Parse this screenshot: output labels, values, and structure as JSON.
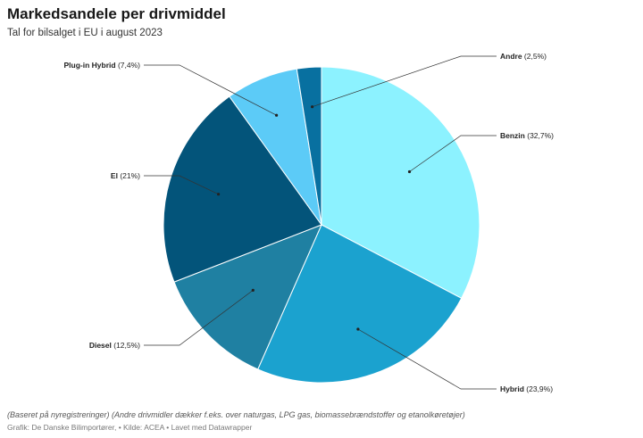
{
  "header": {
    "title": "Markedsandele per drivmiddel",
    "subtitle": "Tal for bilsalget i EU i august 2023"
  },
  "chart_data": {
    "type": "pie",
    "title": "Markedsandele per drivmiddel",
    "subtitle": "Tal for bilsalget i EU i august 2023",
    "slices": [
      {
        "name": "Benzin",
        "value": 32.7,
        "label": "(32,7%)",
        "color": "#8CF2FF"
      },
      {
        "name": "Hybrid",
        "value": 23.9,
        "label": "(23,9%)",
        "color": "#1BA2CF"
      },
      {
        "name": "Diesel",
        "value": 12.5,
        "label": "(12,5%)",
        "color": "#1F80A2"
      },
      {
        "name": "El",
        "value": 21,
        "label": "(21%)",
        "color": "#03547A"
      },
      {
        "name": "Plug-in Hybrid",
        "value": 7.4,
        "label": "(7,4%)",
        "color": "#5CCBF7"
      },
      {
        "name": "Andre",
        "value": 2.5,
        "label": "(2,5%)",
        "color": "#0870A0"
      }
    ]
  },
  "notes": {
    "note": "(Baseret på nyregistreringer) (Andre drivmidler dækker f.eks. over naturgas, LPG gas, biomassebrændstoffer og etanolkøretøjer)",
    "footer": "Grafik: De Danske Bilimportører,  • Kilde: ACEA • Lavet med Datawrapper"
  }
}
